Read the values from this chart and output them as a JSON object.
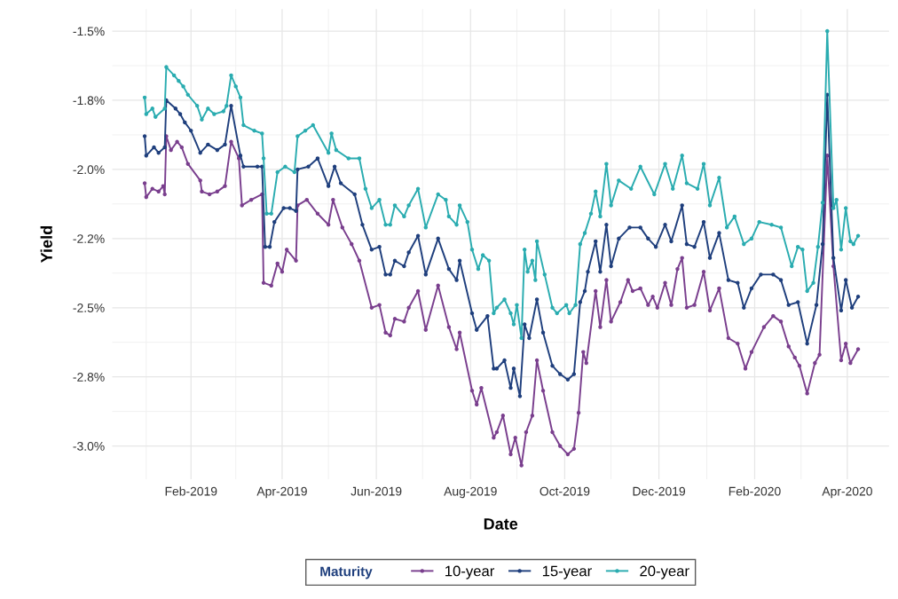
{
  "chart_data": {
    "type": "line",
    "xlabel": "Date",
    "ylabel": "Yield",
    "legend_title": "Maturity",
    "xlim": [
      "2018-12-12",
      "2020-04-28"
    ],
    "ylim": [
      -3.12,
      -1.42
    ],
    "xticks": [
      {
        "value": "2019-02-01",
        "label": "Feb-2019"
      },
      {
        "value": "2019-04-01",
        "label": "Apr-2019"
      },
      {
        "value": "2019-06-01",
        "label": "Jun-2019"
      },
      {
        "value": "2019-08-01",
        "label": "Aug-2019"
      },
      {
        "value": "2019-10-01",
        "label": "Oct-2019"
      },
      {
        "value": "2019-12-01",
        "label": "Dec-2019"
      },
      {
        "value": "2020-02-01",
        "label": "Feb-2020"
      },
      {
        "value": "2020-04-01",
        "label": "Apr-2020"
      }
    ],
    "yticks": [
      {
        "value": -1.5,
        "label": "-1.5%"
      },
      {
        "value": -1.75,
        "label": "-1.8%"
      },
      {
        "value": -2.0,
        "label": "-2.0%"
      },
      {
        "value": -2.25,
        "label": "-2.2%"
      },
      {
        "value": -2.5,
        "label": "-2.5%"
      },
      {
        "value": -2.75,
        "label": "-2.8%"
      },
      {
        "value": -3.0,
        "label": "-3.0%"
      }
    ],
    "grid": true,
    "legend": "bottom",
    "marker": "circle",
    "line_style": "solid",
    "series": [
      {
        "name": "10-year",
        "color": "#7a3f8e",
        "x": [
          "2019-01-02",
          "2019-01-03",
          "2019-01-07",
          "2019-01-11",
          "2019-01-14",
          "2019-01-15",
          "2019-01-16",
          "2019-01-19",
          "2019-01-23",
          "2019-01-26",
          "2019-01-30",
          "2019-02-07",
          "2019-02-08",
          "2019-02-13",
          "2019-02-18",
          "2019-02-23",
          "2019-02-27",
          "2019-03-04",
          "2019-03-06",
          "2019-03-12",
          "2019-03-19",
          "2019-03-20",
          "2019-03-25",
          "2019-03-29",
          "2019-04-01",
          "2019-04-04",
          "2019-04-10",
          "2019-04-11",
          "2019-04-17",
          "2019-04-24",
          "2019-05-01",
          "2019-05-04",
          "2019-05-10",
          "2019-05-16",
          "2019-05-21",
          "2019-05-29",
          "2019-06-03",
          "2019-06-07",
          "2019-06-10",
          "2019-06-13",
          "2019-06-19",
          "2019-06-22",
          "2019-06-28",
          "2019-07-03",
          "2019-07-11",
          "2019-07-18",
          "2019-07-23",
          "2019-07-25",
          "2019-08-02",
          "2019-08-05",
          "2019-08-08",
          "2019-08-16",
          "2019-08-18",
          "2019-08-22",
          "2019-08-27",
          "2019-08-30",
          "2019-09-03",
          "2019-09-06",
          "2019-09-10",
          "2019-09-13",
          "2019-09-17",
          "2019-09-23",
          "2019-09-28",
          "2019-10-03",
          "2019-10-07",
          "2019-10-10",
          "2019-10-13",
          "2019-10-15",
          "2019-10-21",
          "2019-10-24",
          "2019-10-28",
          "2019-10-31",
          "2019-11-06",
          "2019-11-11",
          "2019-11-14",
          "2019-11-19",
          "2019-11-24",
          "2019-11-27",
          "2019-11-30",
          "2019-12-05",
          "2019-12-09",
          "2019-12-13",
          "2019-12-16",
          "2019-12-19",
          "2019-12-24",
          "2019-12-30",
          "2020-01-03",
          "2020-01-09",
          "2020-01-15",
          "2020-01-21",
          "2020-01-26",
          "2020-01-30",
          "2020-02-07",
          "2020-02-13",
          "2020-02-18",
          "2020-02-23",
          "2020-02-27",
          "2020-03-01",
          "2020-03-06",
          "2020-03-11",
          "2020-03-14",
          "2020-03-19",
          "2020-03-23",
          "2020-03-28",
          "2020-03-31",
          "2020-04-03",
          "2020-04-08"
        ],
        "values": [
          -2.05,
          -2.1,
          -2.07,
          -2.08,
          -2.06,
          -2.09,
          -1.88,
          -1.93,
          -1.9,
          -1.92,
          -1.98,
          -2.04,
          -2.08,
          -2.09,
          -2.08,
          -2.06,
          -1.9,
          -1.96,
          -2.13,
          -2.11,
          -2.09,
          -2.41,
          -2.42,
          -2.34,
          -2.37,
          -2.29,
          -2.33,
          -2.13,
          -2.11,
          -2.16,
          -2.2,
          -2.11,
          -2.21,
          -2.27,
          -2.33,
          -2.5,
          -2.49,
          -2.59,
          -2.6,
          -2.54,
          -2.55,
          -2.5,
          -2.44,
          -2.58,
          -2.42,
          -2.57,
          -2.65,
          -2.59,
          -2.8,
          -2.85,
          -2.79,
          -2.97,
          -2.95,
          -2.89,
          -3.03,
          -2.97,
          -3.07,
          -2.95,
          -2.89,
          -2.69,
          -2.8,
          -2.95,
          -3.0,
          -3.03,
          -3.01,
          -2.88,
          -2.66,
          -2.7,
          -2.44,
          -2.57,
          -2.4,
          -2.55,
          -2.48,
          -2.4,
          -2.44,
          -2.43,
          -2.49,
          -2.46,
          -2.5,
          -2.41,
          -2.49,
          -2.36,
          -2.32,
          -2.5,
          -2.49,
          -2.37,
          -2.51,
          -2.43,
          -2.61,
          -2.63,
          -2.72,
          -2.66,
          -2.57,
          -2.53,
          -2.55,
          -2.64,
          -2.68,
          -2.71,
          -2.81,
          -2.7,
          -2.67,
          -1.95,
          -2.35,
          -2.69,
          -2.63,
          -2.7,
          -2.65
        ]
      },
      {
        "name": "15-year",
        "color": "#1f3f7d",
        "x": [
          "2019-01-02",
          "2019-01-03",
          "2019-01-08",
          "2019-01-11",
          "2019-01-15",
          "2019-01-16",
          "2019-01-22",
          "2019-01-25",
          "2019-01-28",
          "2019-02-01",
          "2019-02-07",
          "2019-02-12",
          "2019-02-18",
          "2019-02-23",
          "2019-02-27",
          "2019-03-05",
          "2019-03-07",
          "2019-03-16",
          "2019-03-19",
          "2019-03-21",
          "2019-03-24",
          "2019-03-27",
          "2019-04-02",
          "2019-04-06",
          "2019-04-10",
          "2019-04-11",
          "2019-04-18",
          "2019-04-24",
          "2019-05-01",
          "2019-05-05",
          "2019-05-09",
          "2019-05-18",
          "2019-05-23",
          "2019-05-29",
          "2019-06-03",
          "2019-06-07",
          "2019-06-10",
          "2019-06-13",
          "2019-06-19",
          "2019-06-22",
          "2019-06-28",
          "2019-07-03",
          "2019-07-11",
          "2019-07-18",
          "2019-07-23",
          "2019-07-25",
          "2019-08-02",
          "2019-08-05",
          "2019-08-12",
          "2019-08-16",
          "2019-08-18",
          "2019-08-23",
          "2019-08-27",
          "2019-08-29",
          "2019-09-02",
          "2019-09-05",
          "2019-09-08",
          "2019-09-13",
          "2019-09-17",
          "2019-09-23",
          "2019-09-28",
          "2019-10-03",
          "2019-10-07",
          "2019-10-11",
          "2019-10-14",
          "2019-10-16",
          "2019-10-21",
          "2019-10-24",
          "2019-10-28",
          "2019-10-31",
          "2019-11-05",
          "2019-11-12",
          "2019-11-19",
          "2019-11-24",
          "2019-11-29",
          "2019-12-05",
          "2019-12-09",
          "2019-12-16",
          "2019-12-19",
          "2019-12-24",
          "2019-12-30",
          "2020-01-03",
          "2020-01-09",
          "2020-01-15",
          "2020-01-21",
          "2020-01-25",
          "2020-01-30",
          "2020-02-05",
          "2020-02-13",
          "2020-02-18",
          "2020-02-23",
          "2020-02-29",
          "2020-03-06",
          "2020-03-12",
          "2020-03-16",
          "2020-03-19",
          "2020-03-23",
          "2020-03-28",
          "2020-03-31",
          "2020-04-04",
          "2020-04-08"
        ],
        "values": [
          -1.88,
          -1.95,
          -1.92,
          -1.94,
          -1.92,
          -1.75,
          -1.78,
          -1.8,
          -1.83,
          -1.86,
          -1.94,
          -1.91,
          -1.93,
          -1.91,
          -1.77,
          -1.95,
          -1.99,
          -1.99,
          -1.99,
          -2.28,
          -2.28,
          -2.19,
          -2.14,
          -2.14,
          -2.15,
          -2.0,
          -1.99,
          -1.96,
          -2.06,
          -1.99,
          -2.05,
          -2.09,
          -2.2,
          -2.29,
          -2.28,
          -2.38,
          -2.38,
          -2.33,
          -2.35,
          -2.3,
          -2.24,
          -2.38,
          -2.25,
          -2.36,
          -2.4,
          -2.33,
          -2.52,
          -2.58,
          -2.53,
          -2.72,
          -2.72,
          -2.69,
          -2.79,
          -2.72,
          -2.82,
          -2.56,
          -2.61,
          -2.47,
          -2.59,
          -2.71,
          -2.74,
          -2.76,
          -2.74,
          -2.48,
          -2.44,
          -2.37,
          -2.26,
          -2.37,
          -2.2,
          -2.35,
          -2.25,
          -2.21,
          -2.21,
          -2.25,
          -2.28,
          -2.2,
          -2.26,
          -2.13,
          -2.27,
          -2.28,
          -2.19,
          -2.32,
          -2.23,
          -2.4,
          -2.41,
          -2.5,
          -2.43,
          -2.38,
          -2.38,
          -2.4,
          -2.49,
          -2.48,
          -2.63,
          -2.49,
          -2.27,
          -1.73,
          -2.32,
          -2.51,
          -2.4,
          -2.5,
          -2.46
        ]
      },
      {
        "name": "20-year",
        "color": "#2aacb0",
        "x": [
          "2019-01-02",
          "2019-01-03",
          "2019-01-07",
          "2019-01-09",
          "2019-01-15",
          "2019-01-16",
          "2019-01-21",
          "2019-01-24",
          "2019-01-27",
          "2019-01-30",
          "2019-02-05",
          "2019-02-08",
          "2019-02-12",
          "2019-02-16",
          "2019-02-22",
          "2019-02-24",
          "2019-02-27",
          "2019-03-02",
          "2019-03-05",
          "2019-03-07",
          "2019-03-14",
          "2019-03-19",
          "2019-03-20",
          "2019-03-22",
          "2019-03-25",
          "2019-03-29",
          "2019-04-03",
          "2019-04-09",
          "2019-04-11",
          "2019-04-16",
          "2019-04-21",
          "2019-05-01",
          "2019-05-03",
          "2019-05-06",
          "2019-05-14",
          "2019-05-21",
          "2019-05-25",
          "2019-05-29",
          "2019-06-03",
          "2019-06-07",
          "2019-06-10",
          "2019-06-13",
          "2019-06-19",
          "2019-06-22",
          "2019-06-28",
          "2019-07-03",
          "2019-07-11",
          "2019-07-16",
          "2019-07-18",
          "2019-07-23",
          "2019-07-25",
          "2019-07-30",
          "2019-08-02",
          "2019-08-06",
          "2019-08-09",
          "2019-08-13",
          "2019-08-16",
          "2019-08-18",
          "2019-08-23",
          "2019-08-27",
          "2019-08-29",
          "2019-08-31",
          "2019-09-03",
          "2019-09-05",
          "2019-09-07",
          "2019-09-10",
          "2019-09-12",
          "2019-09-13",
          "2019-09-18",
          "2019-09-23",
          "2019-09-26",
          "2019-10-02",
          "2019-10-04",
          "2019-10-08",
          "2019-10-11",
          "2019-10-14",
          "2019-10-18",
          "2019-10-21",
          "2019-10-24",
          "2019-10-28",
          "2019-10-31",
          "2019-11-05",
          "2019-11-13",
          "2019-11-19",
          "2019-11-28",
          "2019-12-05",
          "2019-12-10",
          "2019-12-16",
          "2019-12-19",
          "2019-12-26",
          "2019-12-30",
          "2020-01-03",
          "2020-01-09",
          "2020-01-14",
          "2020-01-19",
          "2020-01-25",
          "2020-01-30",
          "2020-02-04",
          "2020-02-12",
          "2020-02-18",
          "2020-02-25",
          "2020-02-29",
          "2020-03-03",
          "2020-03-06",
          "2020-03-10",
          "2020-03-13",
          "2020-03-16",
          "2020-03-19",
          "2020-03-23",
          "2020-03-25",
          "2020-03-28",
          "2020-03-31",
          "2020-04-03",
          "2020-04-05",
          "2020-04-08"
        ],
        "values": [
          -1.74,
          -1.8,
          -1.78,
          -1.81,
          -1.78,
          -1.63,
          -1.66,
          -1.68,
          -1.7,
          -1.73,
          -1.77,
          -1.82,
          -1.78,
          -1.8,
          -1.79,
          -1.77,
          -1.66,
          -1.7,
          -1.74,
          -1.84,
          -1.86,
          -1.87,
          -1.96,
          -2.16,
          -2.16,
          -2.01,
          -1.99,
          -2.01,
          -1.88,
          -1.86,
          -1.84,
          -1.94,
          -1.87,
          -1.93,
          -1.96,
          -1.96,
          -2.07,
          -2.14,
          -2.11,
          -2.2,
          -2.2,
          -2.13,
          -2.17,
          -2.13,
          -2.07,
          -2.21,
          -2.09,
          -2.11,
          -2.17,
          -2.2,
          -2.13,
          -2.19,
          -2.29,
          -2.36,
          -2.31,
          -2.33,
          -2.52,
          -2.5,
          -2.47,
          -2.52,
          -2.56,
          -2.49,
          -2.61,
          -2.29,
          -2.37,
          -2.33,
          -2.4,
          -2.26,
          -2.38,
          -2.5,
          -2.52,
          -2.49,
          -2.52,
          -2.49,
          -2.27,
          -2.23,
          -2.16,
          -2.08,
          -2.17,
          -1.98,
          -2.13,
          -2.04,
          -2.07,
          -1.99,
          -2.09,
          -1.98,
          -2.07,
          -1.95,
          -2.05,
          -2.07,
          -1.98,
          -2.13,
          -2.03,
          -2.21,
          -2.17,
          -2.27,
          -2.25,
          -2.19,
          -2.2,
          -2.21,
          -2.35,
          -2.28,
          -2.29,
          -2.44,
          -2.41,
          -2.28,
          -2.12,
          -1.5,
          -2.14,
          -2.11,
          -2.29,
          -2.14,
          -2.26,
          -2.27,
          -2.24
        ]
      }
    ]
  }
}
